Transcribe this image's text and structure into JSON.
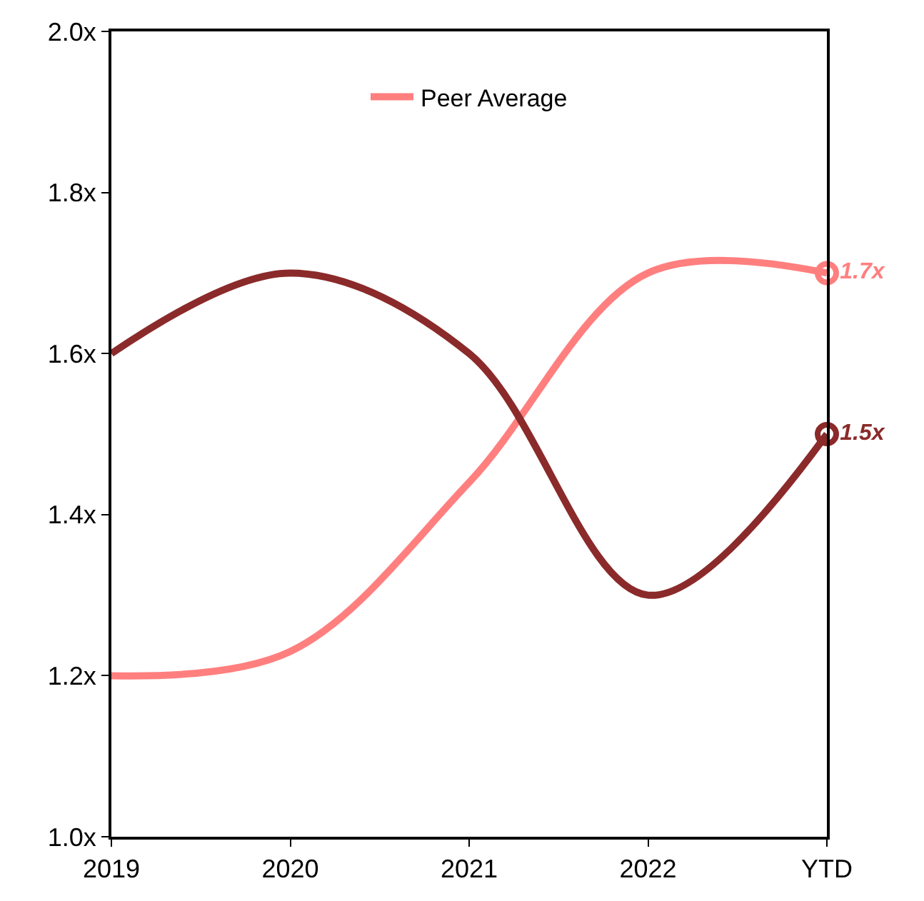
{
  "chart_data": {
    "type": "line",
    "categories": [
      "2019",
      "2020",
      "2021",
      "2022",
      "YTD"
    ],
    "series": [
      {
        "name": "Peer Average",
        "color": "#ff7f7f",
        "values": [
          1.2,
          1.23,
          1.44,
          1.7,
          1.7
        ],
        "value_labels": [
          null,
          null,
          null,
          null,
          "1.7x"
        ]
      },
      {
        "color": "#8b2a2a",
        "values": [
          1.6,
          1.7,
          1.6,
          1.3,
          1.5
        ],
        "value_labels": [
          null,
          null,
          null,
          null,
          "1.5x"
        ]
      }
    ],
    "ylim": [
      1.0,
      2.0
    ],
    "yticks": [
      {
        "value": 1.0,
        "label": "1.0x"
      },
      {
        "value": 1.2,
        "label": "1.2x"
      },
      {
        "value": 1.4,
        "label": "1.4x"
      },
      {
        "value": 1.6,
        "label": "1.6x"
      },
      {
        "value": 1.8,
        "label": "1.8x"
      },
      {
        "value": 2.0,
        "label": "2.0x"
      }
    ],
    "grid": false,
    "legend": "top",
    "line_style": "solid"
  }
}
